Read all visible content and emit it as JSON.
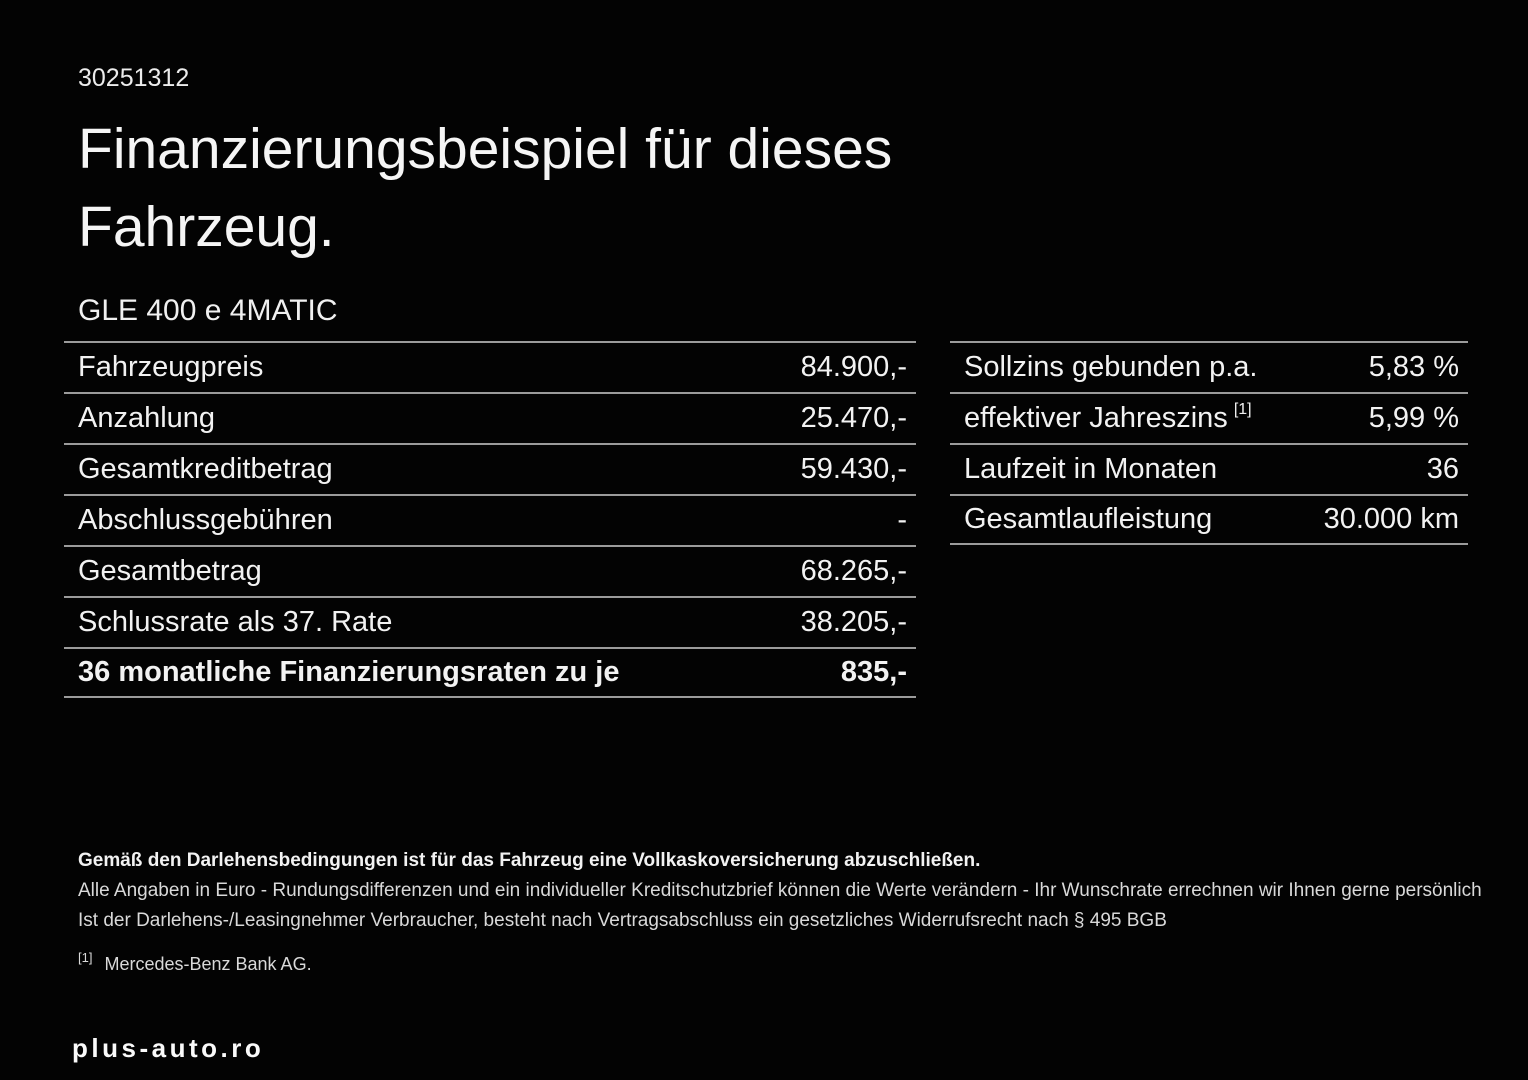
{
  "page": {
    "vehicle_id": "30251312",
    "title": "Finanzierungsbeispiel für dieses Fahrzeug.",
    "model": "GLE 400 e 4MATIC"
  },
  "financing_table": {
    "rows": [
      {
        "label": "Fahrzeugpreis",
        "value": "84.900,-"
      },
      {
        "label": "Anzahlung",
        "value": "25.470,-"
      },
      {
        "label": "Gesamtkreditbetrag",
        "value": "59.430,-"
      },
      {
        "label": "Abschlussgebühren",
        "value": "-"
      },
      {
        "label": "Gesamtbetrag",
        "value": "68.265,-"
      },
      {
        "label": "Schlussrate als 37. Rate",
        "value": "38.205,-"
      },
      {
        "label": "36 monatliche Finanzierungsraten zu je",
        "value": "835,-"
      }
    ]
  },
  "conditions_table": {
    "rows": [
      {
        "label": "Sollzins gebunden p.a.",
        "value": "5,83 %"
      },
      {
        "label": "effektiver Jahreszins",
        "footnote_mark": "[1]",
        "value": "5,99 %"
      },
      {
        "label": "Laufzeit in Monaten",
        "value": "36"
      },
      {
        "label": "Gesamtlaufleistung",
        "value": "30.000 km"
      }
    ]
  },
  "footer": {
    "insurance_note": "Gemäß den Darlehensbedingungen ist für das Fahrzeug eine Vollkaskoversicherung abzuschließen.",
    "disclaimer_line1": "Alle Angaben in Euro - Rundungsdifferenzen und ein individueller Kreditschutzbrief können die Werte verändern - Ihr Wunschrate errechnen wir Ihnen gerne persönlich",
    "disclaimer_line2": "Ist der Darlehens-/Leasingnehmer Verbraucher, besteht nach Vertragsabschluss ein gesetzliches Widerrufsrecht nach § 495 BGB",
    "footnote_mark": "[1]",
    "footnote_text": "Mercedes-Benz Bank AG."
  },
  "watermark": {
    "text": "plus-auto.ro"
  },
  "colors": {
    "background": "#030303",
    "text": "#f2f2f2",
    "divider": "#9b9b9b"
  }
}
